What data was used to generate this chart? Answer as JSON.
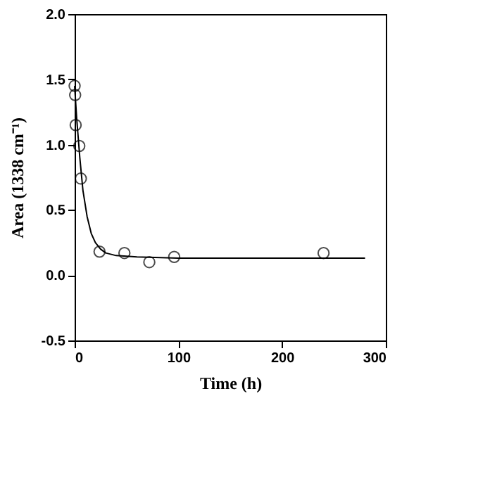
{
  "chart_data": {
    "type": "scatter",
    "xlabel": "Time (h)",
    "ylabel": "Area (1338 cm⁻¹)",
    "xlim": [
      0,
      300
    ],
    "xticks": [
      0,
      100,
      200,
      300
    ],
    "ylim": [
      -0.5,
      2.0
    ],
    "yticks": [
      {
        "value": -0.5,
        "label": "-0.5"
      },
      {
        "value": 0,
        "label": "0.0"
      },
      {
        "value": 0.5,
        "label": "0.5"
      },
      {
        "value": 1,
        "label": "1.0"
      },
      {
        "value": 1.5,
        "label": "1.5"
      },
      {
        "value": 2,
        "label": "2.0"
      }
    ],
    "grid": false,
    "series": [
      {
        "marker": "circle",
        "color": "#000000",
        "x": [
          0,
          0.5,
          1,
          4.5,
          6,
          24,
          48,
          72,
          96,
          240
        ],
        "values": [
          1.45,
          1.38,
          1.15,
          0.99,
          0.74,
          0.18,
          0.17,
          0.1,
          0.14,
          0.17
        ]
      },
      {
        "type": "line",
        "marker": "none",
        "line_style": "solid",
        "color": "#000000",
        "x": [
          0,
          2,
          5,
          8,
          12,
          16,
          20,
          25,
          30,
          40,
          60,
          100,
          280
        ],
        "values": [
          1.45,
          1.2,
          0.9,
          0.65,
          0.45,
          0.32,
          0.25,
          0.2,
          0.17,
          0.15,
          0.14,
          0.13,
          0.13
        ]
      }
    ]
  }
}
